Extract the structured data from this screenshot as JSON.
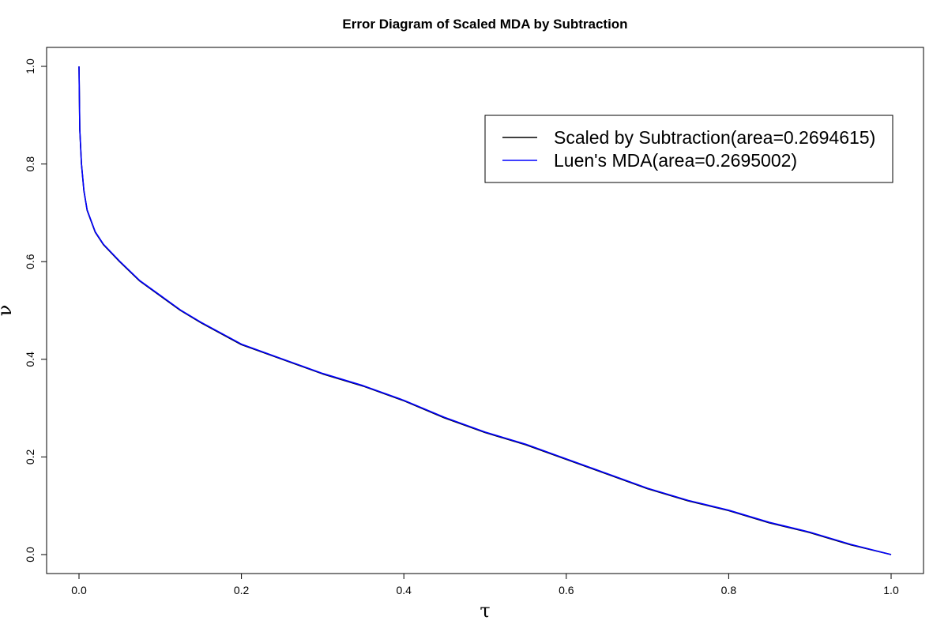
{
  "chart_data": {
    "type": "line",
    "title": "Error Diagram of Scaled MDA by Subtraction",
    "xlabel": "τ",
    "ylabel": "ν",
    "xlim": [
      0.0,
      1.0
    ],
    "ylim": [
      0.0,
      1.0
    ],
    "x_ticks": [
      "0.0",
      "0.2",
      "0.4",
      "0.6",
      "0.8",
      "1.0"
    ],
    "y_ticks": [
      "0.0",
      "0.2",
      "0.4",
      "0.6",
      "0.8",
      "1.0"
    ],
    "grid": false,
    "legend_position": "top-right",
    "colors": {
      "scaled": "#000000",
      "luen": "#0000ff"
    },
    "series": [
      {
        "name": "Scaled by Subtraction(area=0.2694615)",
        "color": "#000000",
        "x": [
          0.0,
          0.001,
          0.003,
          0.006,
          0.01,
          0.02,
          0.03,
          0.05,
          0.075,
          0.1,
          0.125,
          0.15,
          0.2,
          0.25,
          0.3,
          0.35,
          0.4,
          0.45,
          0.5,
          0.55,
          0.6,
          0.65,
          0.7,
          0.75,
          0.8,
          0.85,
          0.9,
          0.95,
          1.0
        ],
        "y": [
          1.0,
          0.87,
          0.8,
          0.745,
          0.705,
          0.66,
          0.635,
          0.6,
          0.56,
          0.53,
          0.5,
          0.475,
          0.43,
          0.4,
          0.37,
          0.345,
          0.315,
          0.28,
          0.25,
          0.225,
          0.195,
          0.165,
          0.135,
          0.11,
          0.09,
          0.065,
          0.045,
          0.02,
          0.0
        ]
      },
      {
        "name": "Luen's MDA(area=0.2695002)",
        "color": "#0000ff",
        "x": [
          0.0,
          0.001,
          0.003,
          0.006,
          0.01,
          0.02,
          0.03,
          0.05,
          0.075,
          0.1,
          0.125,
          0.15,
          0.2,
          0.25,
          0.3,
          0.35,
          0.4,
          0.45,
          0.5,
          0.55,
          0.6,
          0.65,
          0.7,
          0.75,
          0.8,
          0.85,
          0.9,
          0.95,
          1.0
        ],
        "y": [
          1.0,
          0.871,
          0.801,
          0.746,
          0.706,
          0.661,
          0.636,
          0.601,
          0.561,
          0.531,
          0.501,
          0.476,
          0.431,
          0.401,
          0.371,
          0.346,
          0.316,
          0.281,
          0.251,
          0.226,
          0.196,
          0.166,
          0.136,
          0.111,
          0.091,
          0.066,
          0.046,
          0.021,
          0.0
        ]
      }
    ]
  }
}
